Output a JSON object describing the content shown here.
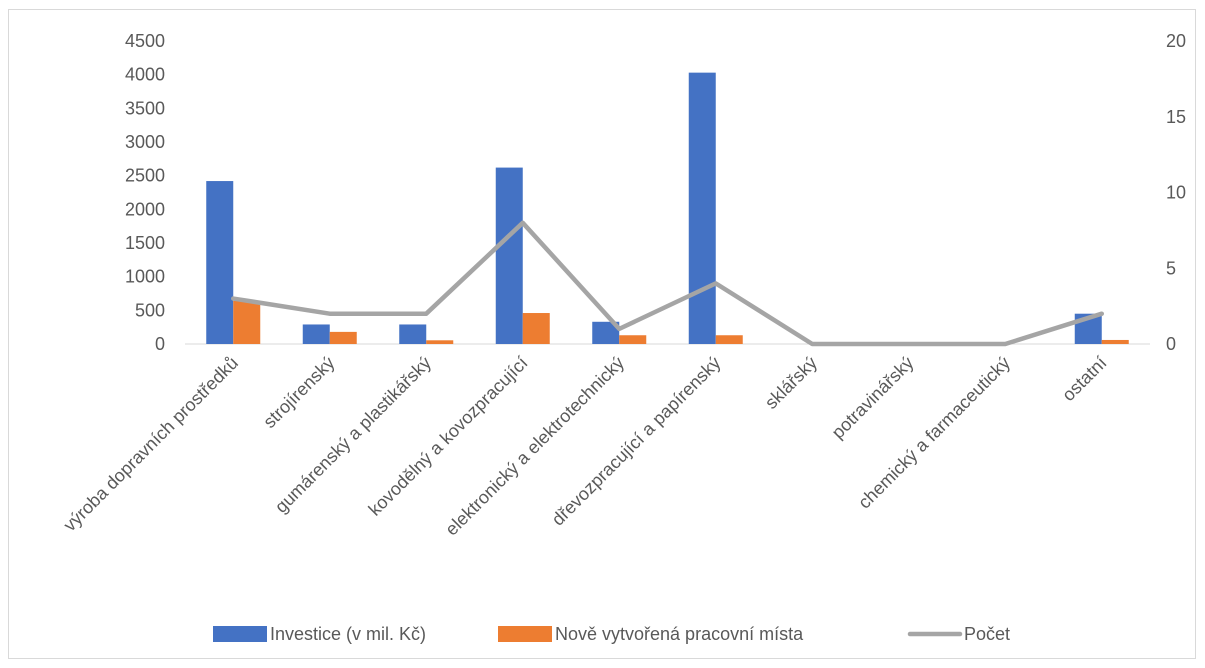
{
  "chart_data": {
    "type": "bar",
    "categories": [
      "výroba dopravních prostředků",
      "strojírenský",
      "gumárenský a plastikářský",
      "kovodělný a kovozpracující",
      "elektronický a elektrotechnický",
      "dřevozpracující a papírenský",
      "sklářský",
      "potravinářský",
      "chemický a farmaceutický",
      "ostatní"
    ],
    "series": [
      {
        "name": "Investice (v mil. Kč)",
        "type": "bar",
        "axis": "left",
        "color": "#4472c4",
        "values": [
          2420,
          290,
          290,
          2620,
          330,
          4030,
          0,
          0,
          0,
          450
        ]
      },
      {
        "name": "Nově vytvořená pracovní místa",
        "type": "bar",
        "axis": "left",
        "color": "#ed7d31",
        "values": [
          640,
          180,
          55,
          460,
          130,
          130,
          0,
          0,
          0,
          60
        ]
      },
      {
        "name": "Počet",
        "type": "line",
        "axis": "right",
        "color": "#a5a5a5",
        "values": [
          3,
          2,
          2,
          8,
          1,
          4,
          0,
          0,
          0,
          2
        ]
      }
    ],
    "y_left": {
      "min": 0,
      "max": 4500,
      "ticks": [
        "0",
        "500",
        "1000",
        "1500",
        "2000",
        "2500",
        "3000",
        "3500",
        "4000",
        "4500"
      ]
    },
    "y_right": {
      "min": 0,
      "max": 20,
      "ticks": [
        "0",
        "5",
        "10",
        "15",
        "20"
      ]
    },
    "grid": false,
    "legend_position": "bottom"
  }
}
